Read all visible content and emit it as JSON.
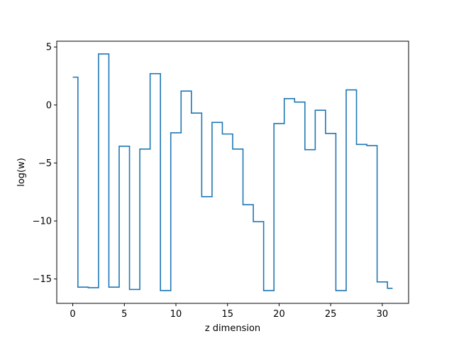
{
  "chart_data": {
    "type": "line",
    "step": "mid",
    "title": "",
    "xlabel": "z dimension",
    "ylabel": "log(w)",
    "xlim": [
      -1.55,
      32.55
    ],
    "ylim": [
      -17.1,
      5.5
    ],
    "xticks": [
      0,
      5,
      10,
      15,
      20,
      25,
      30
    ],
    "yticks": [
      5,
      0,
      -5,
      -10,
      -15
    ],
    "ytick_labels": [
      "5",
      "0",
      "−5",
      "−10",
      "−15"
    ],
    "grid": false,
    "color": "#1f77b4",
    "series": [
      {
        "x": [
          0,
          1,
          2,
          3,
          4,
          5,
          6,
          7,
          8,
          9,
          10,
          11,
          12,
          13,
          14,
          15,
          16,
          17,
          18,
          19,
          20,
          21,
          22,
          23,
          24,
          25,
          26,
          27,
          28,
          29,
          30,
          31
        ],
        "values": [
          2.4,
          -15.7,
          -15.75,
          4.4,
          -15.7,
          -3.55,
          -15.9,
          -3.8,
          2.7,
          -16.0,
          -2.4,
          1.2,
          -0.7,
          -7.9,
          -1.5,
          -2.5,
          -3.8,
          -8.6,
          -10.05,
          -16.0,
          -1.6,
          0.55,
          0.25,
          -3.85,
          -0.45,
          -2.45,
          -16.0,
          1.3,
          -3.4,
          -3.5,
          -15.25,
          -15.8
        ]
      }
    ]
  }
}
